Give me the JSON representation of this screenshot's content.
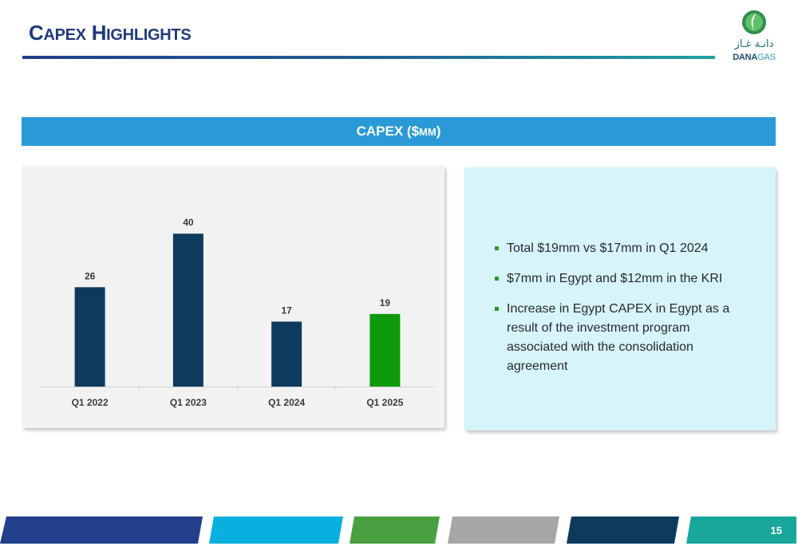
{
  "header": {
    "title_lead_1": "C",
    "title_small_1": "APEX",
    "title_lead_2": "H",
    "title_small_2": "IGHLIGHTS"
  },
  "logo": {
    "arabic": "دانـة غـاز",
    "latin_dark": "DANA",
    "latin_light": "GAS",
    "icon": "dana-gas-drop-icon"
  },
  "section": {
    "label_lead": "CAPEX ($",
    "label_small": "MM",
    "label_tail": ")"
  },
  "chart_data": {
    "type": "bar",
    "categories": [
      "Q1 2022",
      "Q1 2023",
      "Q1 2024",
      "Q1 2025"
    ],
    "values": [
      26,
      40,
      17,
      19
    ],
    "title": "",
    "xlabel": "",
    "ylabel": "",
    "ylim": [
      0,
      44
    ],
    "grid": false,
    "legend": "none",
    "colors": [
      "#0e3a5e",
      "#0e3a5e",
      "#0e3a5e",
      "#0d9a0d"
    ]
  },
  "bullets": [
    "Total $19mm vs $17mm in Q1 2024",
    "$7mm in Egypt and $12mm in the KRI",
    "Increase in Egypt CAPEX in Egypt as a result of the investment program associated with the consolidation agreement"
  ],
  "footer": {
    "page_number": "15",
    "colors": [
      "#213f8a",
      "#08b0e0",
      "#4aa040",
      "#a6a6a6",
      "#0e3a5e",
      "#19a79c"
    ]
  }
}
